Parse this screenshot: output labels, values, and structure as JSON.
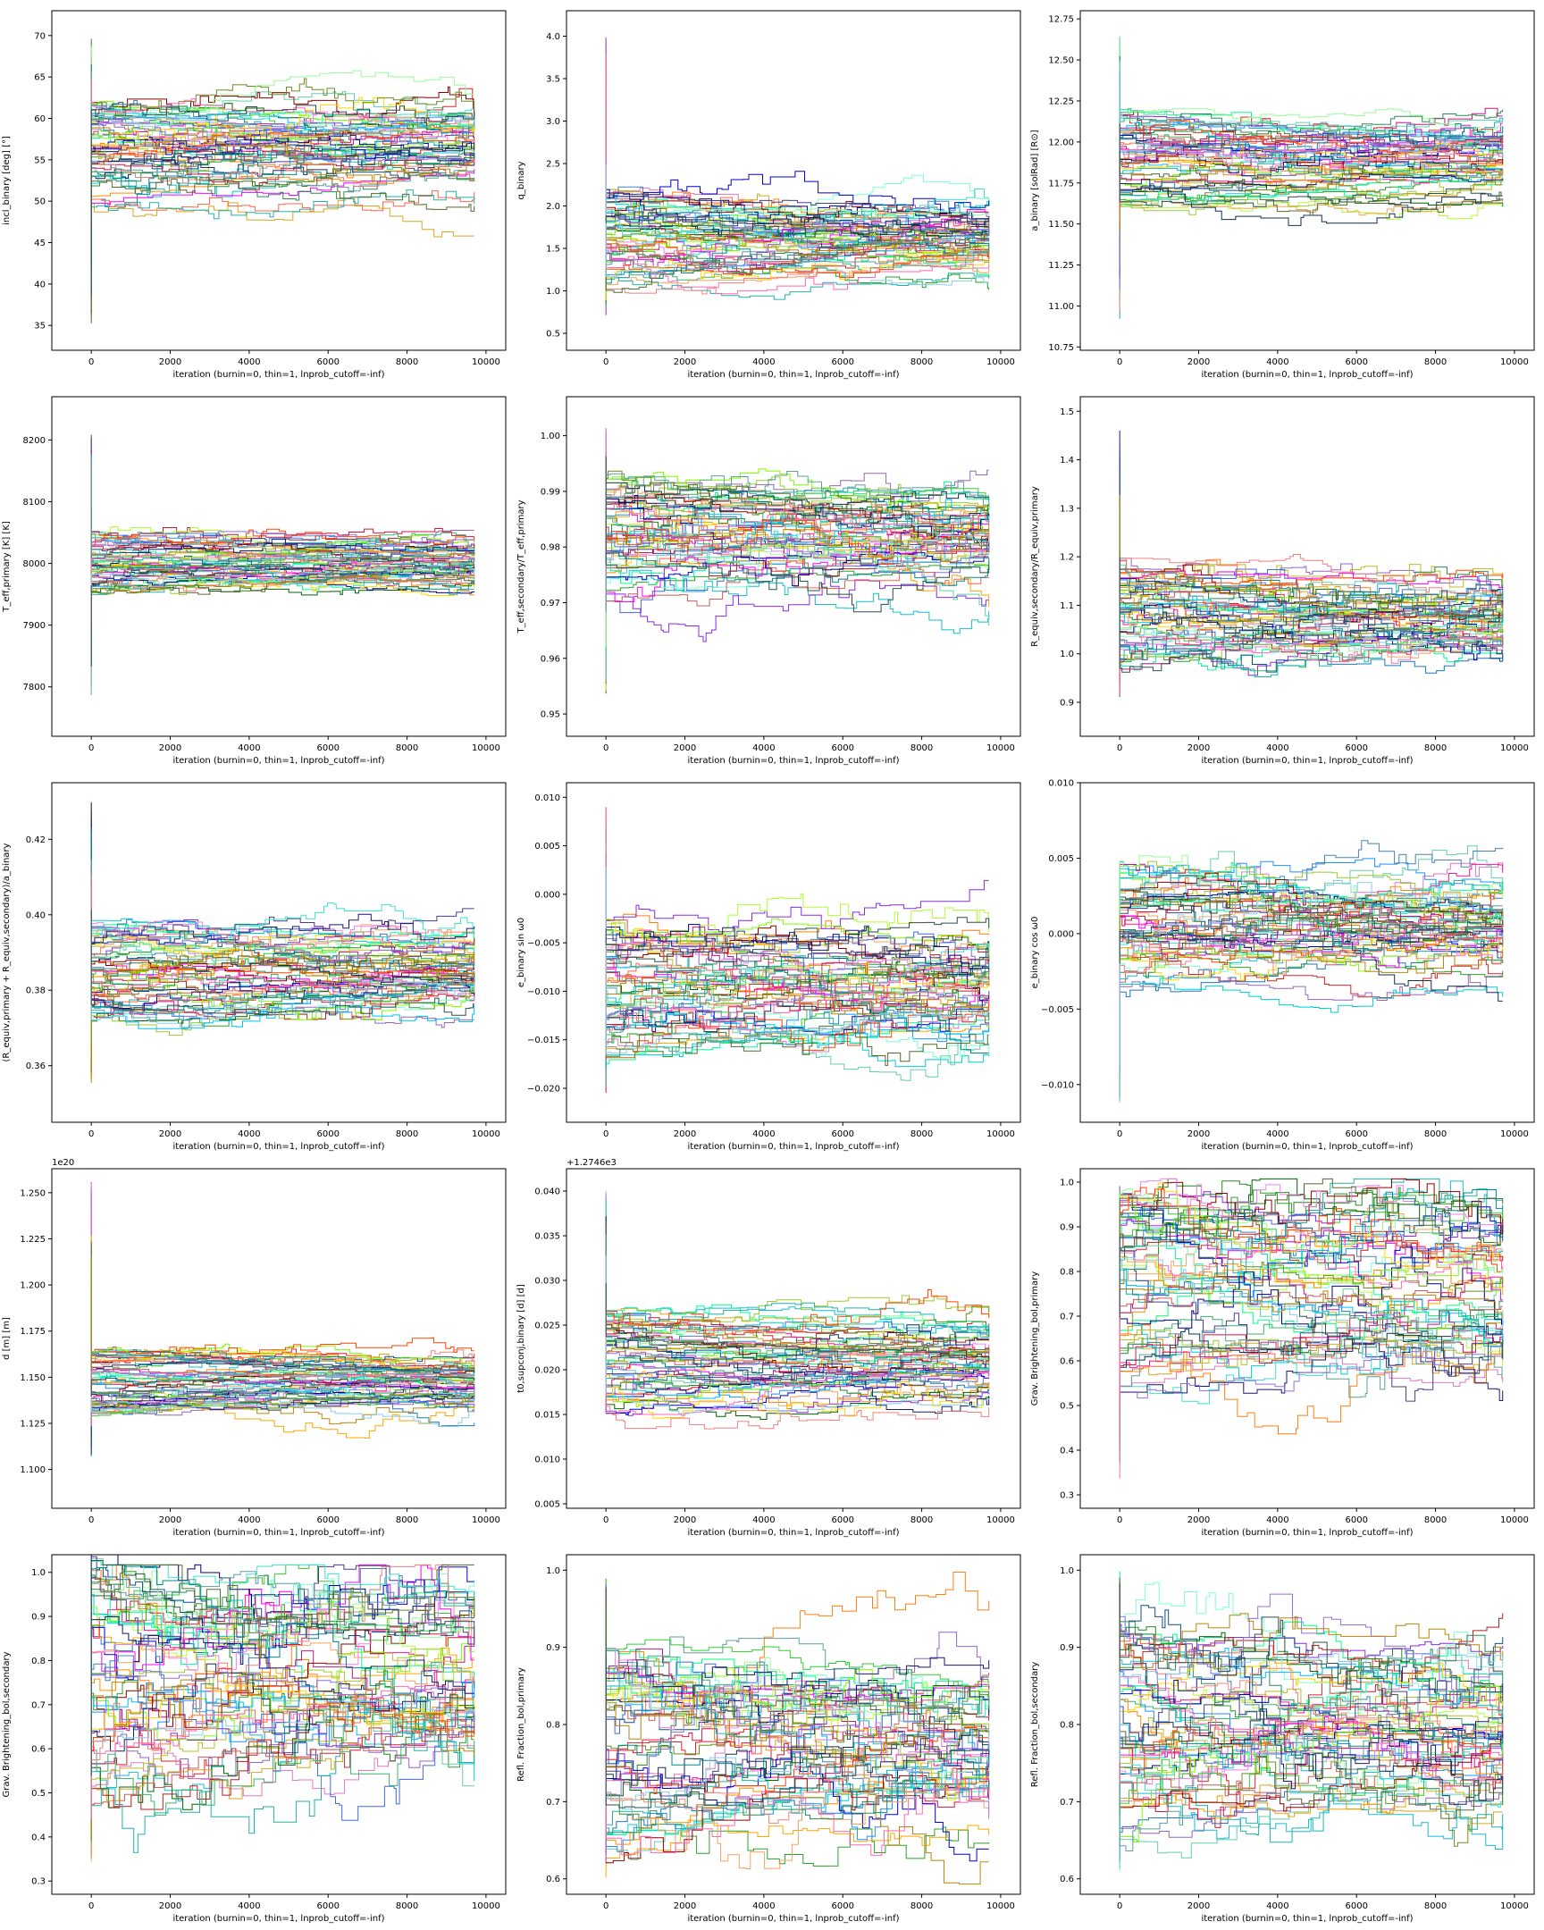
{
  "chart_data": [
    {
      "type": "line",
      "xlabel": "iteration (burnin=0, thin=1, lnprob_cutoff=-inf)",
      "ylabel": "incl_binary [deg] [°]",
      "xlim": [
        -1000,
        10500
      ],
      "ylim": [
        32,
        73
      ],
      "xticks": [
        0,
        2000,
        4000,
        6000,
        8000,
        10000
      ],
      "yticks": [
        35,
        40,
        45,
        50,
        55,
        60,
        65,
        70
      ],
      "ytick_labels": [
        "35",
        "40",
        "45",
        "50",
        "55",
        "60",
        "65",
        "70"
      ],
      "offset": "",
      "walkers": {
        "center": 56,
        "spread": 4.5,
        "start": [
          35,
          70
        ],
        "n": 60
      }
    },
    {
      "type": "line",
      "xlabel": "iteration (burnin=0, thin=1, lnprob_cutoff=-inf)",
      "ylabel": "q_binary",
      "xlim": [
        -1000,
        10500
      ],
      "ylim": [
        0.3,
        4.3
      ],
      "xticks": [
        0,
        2000,
        4000,
        6000,
        8000,
        10000
      ],
      "yticks": [
        0.5,
        1.0,
        1.5,
        2.0,
        2.5,
        3.0,
        3.5,
        4.0
      ],
      "ytick_labels": [
        "0.5",
        "1.0",
        "1.5",
        "2.0",
        "2.5",
        "3.0",
        "3.5",
        "4.0"
      ],
      "offset": "",
      "walkers": {
        "center": 1.6,
        "spread": 0.4,
        "start": [
          0.5,
          4.0
        ],
        "n": 60
      }
    },
    {
      "type": "line",
      "xlabel": "iteration (burnin=0, thin=1, lnprob_cutoff=-inf)",
      "ylabel": "a_binary [solRad] [R⊙]",
      "xlim": [
        -1000,
        10500
      ],
      "ylim": [
        10.73,
        12.8
      ],
      "xticks": [
        0,
        2000,
        4000,
        6000,
        8000,
        10000
      ],
      "yticks": [
        10.75,
        11.0,
        11.25,
        11.5,
        11.75,
        12.0,
        12.25,
        12.5,
        12.75
      ],
      "ytick_labels": [
        "10.75",
        "11.00",
        "11.25",
        "11.50",
        "11.75",
        "12.00",
        "12.25",
        "12.50",
        "12.75"
      ],
      "offset": "",
      "walkers": {
        "center": 11.9,
        "spread": 0.2,
        "start": [
          10.9,
          12.65
        ],
        "n": 60
      }
    },
    {
      "type": "line",
      "xlabel": "iteration (burnin=0, thin=1, lnprob_cutoff=-inf)",
      "ylabel": "T_eff,primary [K] [K]",
      "xlim": [
        -1000,
        10500
      ],
      "ylim": [
        7720,
        8270
      ],
      "xticks": [
        0,
        2000,
        4000,
        6000,
        8000,
        10000
      ],
      "yticks": [
        7800,
        7900,
        8000,
        8100,
        8200
      ],
      "ytick_labels": [
        "7800",
        "7900",
        "8000",
        "8100",
        "8200"
      ],
      "offset": "",
      "walkers": {
        "center": 8000,
        "spread": 35,
        "start": [
          7775,
          8230
        ],
        "n": 60
      }
    },
    {
      "type": "line",
      "xlabel": "iteration (burnin=0, thin=1, lnprob_cutoff=-inf)",
      "ylabel": "T_eff,secondary/T_eff,primary",
      "xlim": [
        -1000,
        10500
      ],
      "ylim": [
        0.946,
        1.007
      ],
      "xticks": [
        0,
        2000,
        4000,
        6000,
        8000,
        10000
      ],
      "yticks": [
        0.95,
        0.96,
        0.97,
        0.98,
        0.99,
        1.0
      ],
      "ytick_labels": [
        "0.95",
        "0.96",
        "0.97",
        "0.98",
        "0.99",
        "1.00"
      ],
      "offset": "",
      "walkers": {
        "center": 0.982,
        "spread": 0.008,
        "start": [
          0.952,
          1.002
        ],
        "n": 60
      }
    },
    {
      "type": "line",
      "xlabel": "iteration (burnin=0, thin=1, lnprob_cutoff=-inf)",
      "ylabel": "R_equiv,secondary/R_equiv,primary",
      "xlim": [
        -1000,
        10500
      ],
      "ylim": [
        0.83,
        1.53
      ],
      "xticks": [
        0,
        2000,
        4000,
        6000,
        8000,
        10000
      ],
      "yticks": [
        0.9,
        1.0,
        1.1,
        1.2,
        1.3,
        1.4,
        1.5
      ],
      "ytick_labels": [
        "0.9",
        "1.0",
        "1.1",
        "1.2",
        "1.3",
        "1.4",
        "1.5"
      ],
      "offset": "",
      "walkers": {
        "center": 1.08,
        "spread": 0.08,
        "start": [
          0.88,
          1.48
        ],
        "n": 60
      }
    },
    {
      "type": "line",
      "xlabel": "iteration (burnin=0, thin=1, lnprob_cutoff=-inf)",
      "ylabel": "(R_equiv,primary + R_equiv,secondary)/a_binary",
      "xlim": [
        -1000,
        10500
      ],
      "ylim": [
        0.345,
        0.435
      ],
      "xticks": [
        0,
        2000,
        4000,
        6000,
        8000,
        10000
      ],
      "yticks": [
        0.36,
        0.38,
        0.4,
        0.42
      ],
      "ytick_labels": [
        "0.36",
        "0.38",
        "0.40",
        "0.42"
      ],
      "offset": "",
      "walkers": {
        "center": 0.385,
        "spread": 0.009,
        "start": [
          0.354,
          0.43
        ],
        "n": 60
      }
    },
    {
      "type": "line",
      "xlabel": "iteration (burnin=0, thin=1, lnprob_cutoff=-inf)",
      "ylabel": "e_binary sin ω0",
      "xlim": [
        -1000,
        10500
      ],
      "ylim": [
        -0.0235,
        0.0115
      ],
      "xticks": [
        0,
        2000,
        4000,
        6000,
        8000,
        10000
      ],
      "yticks": [
        -0.02,
        -0.015,
        -0.01,
        -0.005,
        0.0,
        0.005,
        0.01
      ],
      "ytick_labels": [
        "−0.020",
        "−0.015",
        "−0.010",
        "−0.005",
        "0.000",
        "0.005",
        "0.010"
      ],
      "offset": "",
      "walkers": {
        "center": -0.01,
        "spread": 0.005,
        "start": [
          -0.021,
          0.009
        ],
        "n": 60
      }
    },
    {
      "type": "line",
      "xlabel": "iteration (burnin=0, thin=1, lnprob_cutoff=-inf)",
      "ylabel": "e_binary cos ω0",
      "xlim": [
        -1000,
        10500
      ],
      "ylim": [
        -0.0125,
        0.01
      ],
      "xticks": [
        0,
        2000,
        4000,
        6000,
        8000,
        10000
      ],
      "yticks": [
        -0.01,
        -0.005,
        0.0,
        0.005,
        0.01
      ],
      "ytick_labels": [
        "−0.010",
        "−0.005",
        "0.000",
        "0.005",
        "0.010"
      ],
      "offset": "",
      "walkers": {
        "center": 0.0005,
        "spread": 0.003,
        "start": [
          -0.0115,
          0.0027
        ],
        "n": 60
      }
    },
    {
      "type": "line",
      "xlabel": "iteration (burnin=0, thin=1, lnprob_cutoff=-inf)",
      "ylabel": "d [m] [m]",
      "xlim": [
        -1000,
        10500
      ],
      "ylim": [
        1.079,
        1.263
      ],
      "xticks": [
        0,
        2000,
        4000,
        6000,
        8000,
        10000
      ],
      "yticks": [
        1.1,
        1.125,
        1.15,
        1.175,
        1.2,
        1.225,
        1.25
      ],
      "ytick_labels": [
        "1.100",
        "1.125",
        "1.150",
        "1.175",
        "1.200",
        "1.225",
        "1.250"
      ],
      "offset": "1e20",
      "walkers": {
        "center": 1.147,
        "spread": 0.012,
        "start": [
          1.105,
          1.256
        ],
        "n": 60
      }
    },
    {
      "type": "line",
      "xlabel": "iteration (burnin=0, thin=1, lnprob_cutoff=-inf)",
      "ylabel": "t0,supconj,binary [d] [d]",
      "xlim": [
        -1000,
        10500
      ],
      "ylim": [
        0.0045,
        0.0425
      ],
      "xticks": [
        0,
        2000,
        4000,
        6000,
        8000,
        10000
      ],
      "yticks": [
        0.005,
        0.01,
        0.015,
        0.02,
        0.025,
        0.03,
        0.035,
        0.04
      ],
      "ytick_labels": [
        "0.005",
        "0.010",
        "0.015",
        "0.020",
        "0.025",
        "0.030",
        "0.035",
        "0.040"
      ],
      "offset": "+1.2746e3",
      "walkers": {
        "center": 0.021,
        "spread": 0.004,
        "start": [
          0.026,
          0.04
        ],
        "n": 60
      }
    },
    {
      "type": "line",
      "xlabel": "iteration (burnin=0, thin=1, lnprob_cutoff=-inf)",
      "ylabel": "Grav. Brightening_bol,primary",
      "xlim": [
        -1000,
        10500
      ],
      "ylim": [
        0.27,
        1.03
      ],
      "xticks": [
        0,
        2000,
        4000,
        6000,
        8000,
        10000
      ],
      "yticks": [
        0.3,
        0.4,
        0.5,
        0.6,
        0.7,
        0.8,
        0.9,
        1.0
      ],
      "ytick_labels": [
        "0.3",
        "0.4",
        "0.5",
        "0.6",
        "0.7",
        "0.8",
        "0.9",
        "1.0"
      ],
      "offset": "",
      "walkers": {
        "center": 0.75,
        "spread": 0.15,
        "start": [
          0.33,
          1.0
        ],
        "n": 60
      }
    },
    {
      "type": "line",
      "xlabel": "iteration (burnin=0, thin=1, lnprob_cutoff=-inf)",
      "ylabel": "Grav. Brightening_bol,secondary",
      "xlim": [
        -1000,
        10500
      ],
      "ylim": [
        0.27,
        1.04
      ],
      "xticks": [
        0,
        2000,
        4000,
        6000,
        8000,
        10000
      ],
      "yticks": [
        0.3,
        0.4,
        0.5,
        0.6,
        0.7,
        0.8,
        0.9,
        1.0
      ],
      "ytick_labels": [
        "0.3",
        "0.4",
        "0.5",
        "0.6",
        "0.7",
        "0.8",
        "0.9",
        "1.0"
      ],
      "offset": "",
      "walkers": {
        "center": 0.75,
        "spread": 0.2,
        "start": [
          0.33,
          1.0
        ],
        "n": 60
      }
    },
    {
      "type": "line",
      "xlabel": "iteration (burnin=0, thin=1, lnprob_cutoff=-inf)",
      "ylabel": "Refl. Fraction_bol,primary",
      "xlim": [
        -1000,
        10500
      ],
      "ylim": [
        0.58,
        1.02
      ],
      "xticks": [
        0,
        2000,
        4000,
        6000,
        8000,
        10000
      ],
      "yticks": [
        0.6,
        0.7,
        0.8,
        0.9,
        1.0
      ],
      "ytick_labels": [
        "0.6",
        "0.7",
        "0.8",
        "0.9",
        "1.0"
      ],
      "offset": "",
      "walkers": {
        "center": 0.77,
        "spread": 0.1,
        "start": [
          0.6,
          0.99
        ],
        "n": 60
      }
    },
    {
      "type": "line",
      "xlabel": "iteration (burnin=0, thin=1, lnprob_cutoff=-inf)",
      "ylabel": "Refl. Fraction_bol,secondary",
      "xlim": [
        -1000,
        10500
      ],
      "ylim": [
        0.58,
        1.02
      ],
      "xticks": [
        0,
        2000,
        4000,
        6000,
        8000,
        10000
      ],
      "yticks": [
        0.6,
        0.7,
        0.8,
        0.9,
        1.0
      ],
      "ytick_labels": [
        "0.6",
        "0.7",
        "0.8",
        "0.9",
        "1.0"
      ],
      "offset": "",
      "walkers": {
        "center": 0.79,
        "spread": 0.1,
        "start": [
          0.61,
          1.0
        ],
        "n": 60
      }
    }
  ],
  "palette": [
    "#1f77b4",
    "#ff7f0e",
    "#2ca02c",
    "#d62728",
    "#9467bd",
    "#17becf",
    "#e377c2",
    "#bcbd22",
    "#00ff7f",
    "#ff1493",
    "#228b22",
    "#4169e1",
    "#ffa500",
    "#00ced1",
    "#dc143c",
    "#32cd32",
    "#8a2be2",
    "#ff6347",
    "#006400",
    "#1e90ff",
    "#daa520",
    "#00fa9a",
    "#b22222",
    "#7fffd4",
    "#ff00ff",
    "#0000cd",
    "#adff2f",
    "#c71585",
    "#3cb371",
    "#ff8c00",
    "#104e8b",
    "#66cdaa",
    "#9acd32",
    "#000080",
    "#f4a460",
    "#20b2aa",
    "#8b0000",
    "#7cfc00",
    "#4682b4",
    "#ee82ee",
    "#2e8b57",
    "#ffd700",
    "#483d8b",
    "#00bfff",
    "#ff4500",
    "#6b8e23",
    "#0f3057",
    "#40e0d0",
    "#cd5c5c",
    "#98fb98",
    "#191970",
    "#f08080",
    "#008b8b",
    "#9370db",
    "#556b2f",
    "#b8860b",
    "#5f9ea0",
    "#ff69b4",
    "#87ceeb",
    "#2f4f4f"
  ]
}
